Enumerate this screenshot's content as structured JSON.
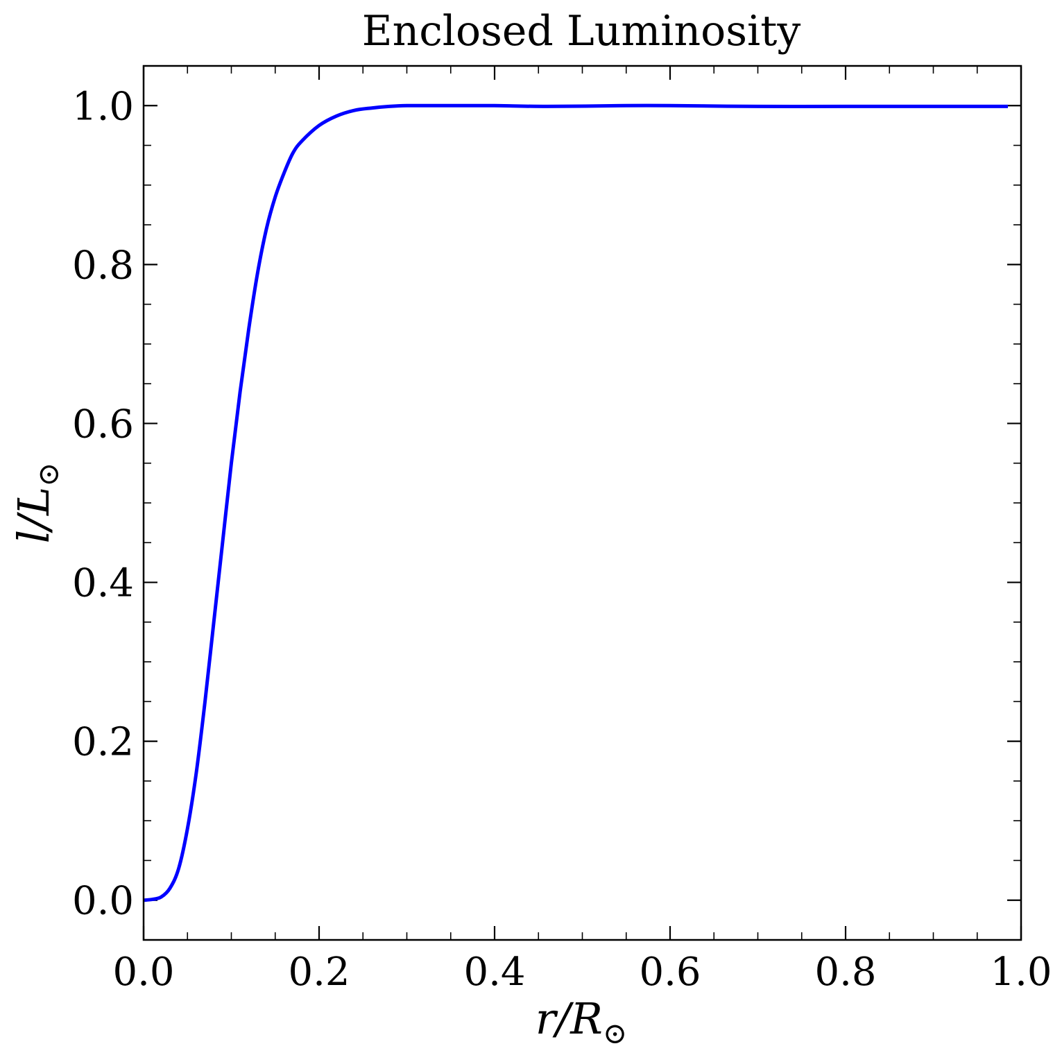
{
  "chart_data": {
    "type": "line",
    "title": "Enclosed Luminosity",
    "xlabel": {
      "base": "r/R",
      "sub": "⊙"
    },
    "ylabel": {
      "base": "l/L",
      "sub": "⊙"
    },
    "xlim": [
      0.0,
      1.0
    ],
    "ylim": [
      -0.05,
      1.05
    ],
    "x_ticks": [
      0.0,
      0.2,
      0.4,
      0.6,
      0.8,
      1.0
    ],
    "x_tick_labels": [
      "0.0",
      "0.2",
      "0.4",
      "0.6",
      "0.8",
      "1.0"
    ],
    "y_ticks": [
      0.0,
      0.2,
      0.4,
      0.6,
      0.8,
      1.0
    ],
    "y_tick_labels": [
      "0.0",
      "0.2",
      "0.4",
      "0.6",
      "0.8",
      "1.0"
    ],
    "x_minor_step": 0.05,
    "y_minor_step": 0.05,
    "ticks_direction": "in",
    "ticks_on_all_sides": true,
    "grid": false,
    "legend": "none",
    "series": [
      {
        "color": "#0000ff",
        "x": [
          0.0,
          0.01,
          0.02,
          0.03,
          0.04,
          0.05,
          0.06,
          0.07,
          0.08,
          0.09,
          0.1,
          0.11,
          0.12,
          0.13,
          0.14,
          0.15,
          0.16,
          0.17,
          0.18,
          0.2,
          0.22,
          0.24,
          0.26,
          0.28,
          0.3,
          0.33,
          0.36,
          0.4,
          0.46,
          0.55,
          0.6,
          0.7,
          0.8,
          0.9,
          0.985
        ],
        "y": [
          0.0,
          0.001,
          0.004,
          0.015,
          0.04,
          0.09,
          0.16,
          0.25,
          0.35,
          0.45,
          0.55,
          0.64,
          0.72,
          0.79,
          0.845,
          0.885,
          0.915,
          0.94,
          0.955,
          0.975,
          0.987,
          0.994,
          0.997,
          0.999,
          1.0,
          1.0,
          1.0,
          1.0,
          0.999,
          1.0,
          1.0,
          0.999,
          0.999,
          0.999,
          0.999
        ]
      }
    ]
  }
}
